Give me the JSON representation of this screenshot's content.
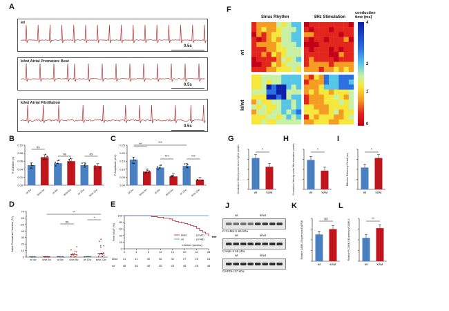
{
  "colors": {
    "wt": "#4a7fc1",
    "kiwt": "#c0151c",
    "ecg": "#b03030"
  },
  "panelA": {
    "label": "A",
    "traces": [
      {
        "title": "wt",
        "scale": "0.5s"
      },
      {
        "title": "ki/wt Atrial Premature Beat",
        "scale": "0.5s"
      },
      {
        "title": "ki/wt Atrial Fibrillation",
        "scale": "0.5s"
      }
    ]
  },
  "panelB": {
    "label": "B",
    "chart_data": {
      "type": "bar",
      "ylabel": "P Duration (s)",
      "categories": [
        "wt 4w",
        "ki/wt 4w",
        "wt 8w",
        "ki/wt 8w",
        "wt 12w",
        "ki/wt 12w"
      ],
      "values": [
        0.05,
        0.07,
        0.055,
        0.06,
        0.05,
        0.048
      ],
      "yticks": [
        "0.00",
        "0.02",
        "0.04",
        "0.06",
        "0.08",
        "0.10"
      ],
      "ylim": [
        0,
        0.1
      ],
      "significance": [
        "ns",
        "ns",
        "ns"
      ]
    }
  },
  "panelC": {
    "label": "C",
    "chart_data": {
      "type": "bar",
      "ylabel": "P Amplitude (mV)",
      "categories": [
        "wt 4w",
        "ki/wt 4w",
        "wt 8w",
        "ki/wt 8w",
        "wt 12w",
        "ki/wt 12w"
      ],
      "values": [
        0.16,
        0.085,
        0.11,
        0.055,
        0.12,
        0.035
      ],
      "yticks": [
        "0.00",
        "0.05",
        "0.10",
        "0.15",
        "0.20",
        "0.25"
      ],
      "ylim": [
        0,
        0.25
      ],
      "significance": [
        "**",
        "***",
        "***",
        "***"
      ]
    }
  },
  "panelD": {
    "label": "D",
    "chart_data": {
      "type": "scatter",
      "ylabel": "Atrial Premature Number (%)",
      "categories": [
        "wt 4w",
        "ki/wt 4w",
        "wt 8w",
        "ki/wt 8w",
        "wt 12w",
        "ki/wt 12w"
      ],
      "yticks": [
        "0",
        "10",
        "20",
        "30",
        "40",
        "50",
        "60",
        "70"
      ],
      "ylim": [
        0,
        70
      ],
      "means": [
        0,
        0.5,
        0.3,
        4,
        0.5,
        6
      ],
      "significance": [
        "**",
        "ns",
        "*"
      ]
    }
  },
  "panelE": {
    "label": "E",
    "chart_data": {
      "type": "line",
      "ylabel": "Free of AF (%)",
      "xlabel": "Lifetime (weeks)",
      "xticks": [
        "0",
        "4",
        "8",
        "12",
        "16",
        "20",
        "24",
        "28"
      ],
      "yticks": [
        "0",
        "20",
        "40",
        "60",
        "80",
        "100"
      ],
      "ylim": [
        0,
        100
      ],
      "series": [
        {
          "name": "ki/wt",
          "n": "(n=41)",
          "x": [
            0,
            6,
            9,
            11,
            13,
            15,
            16,
            17,
            18,
            19,
            20,
            21,
            22,
            23,
            24,
            25,
            26,
            27,
            28
          ],
          "y": [
            100,
            100,
            97,
            95,
            92,
            90,
            85,
            82,
            80,
            78,
            76,
            74,
            70,
            68,
            62,
            55,
            50,
            45,
            38
          ]
        },
        {
          "name": "wt",
          "n": "(n=48)",
          "x": [
            0,
            28
          ],
          "y": [
            100,
            100
          ]
        }
      ],
      "risk_table": {
        "rows": [
          {
            "name": "ki/wt",
            "values": [
              "41",
              "41",
              "40",
              "36",
              "32",
              "27",
              "25",
              "16"
            ]
          },
          {
            "name": "wt",
            "values": [
              "48",
              "48",
              "48",
              "48",
              "48",
              "48",
              "48",
              "48"
            ]
          }
        ]
      },
      "significance": "***"
    }
  },
  "panelF": {
    "label": "F",
    "col_titles": [
      "Sinus Rhythm",
      "8Hz Stimulation"
    ],
    "row_titles": [
      "wt",
      "ki/wt"
    ],
    "colorbar_title": "conduction time (ms)",
    "colorbar_ticks": [
      "4",
      "2",
      "1",
      "0"
    ]
  },
  "panelG": {
    "label": "G",
    "chart_data": {
      "type": "bar",
      "ylabel": "Conduction Velocity under sinus rhythm (mm/s)",
      "categories": [
        "wt",
        "ki/wt"
      ],
      "values": [
        1.25,
        0.9
      ],
      "significance": "*"
    }
  },
  "panelH": {
    "label": "H",
    "chart_data": {
      "type": "bar",
      "ylabel": "Conduction Velocity under 8Hz stimulation (mm/s)",
      "categories": [
        "wt",
        "ki/wt"
      ],
      "values": [
        1.1,
        0.7
      ],
      "significance": "*"
    }
  },
  "panelI": {
    "label": "I",
    "chart_data": {
      "type": "bar",
      "ylabel": "Effective Refractory Period (ms)",
      "categories": [
        "wt",
        "ki/wt"
      ],
      "values": [
        30,
        43
      ],
      "significance": "*"
    }
  },
  "panelJ": {
    "label": "J",
    "blots": [
      {
        "groups": [
          "wt",
          "ki/wt"
        ],
        "band": "P-CAMK-II 55 kDa"
      },
      {
        "groups": [
          "wt",
          "ki/wt"
        ],
        "band": "CAMK-II 55 kDa"
      },
      {
        "groups": [
          "wt",
          "ki/wt"
        ],
        "band": "GAPDH 37 kDa"
      }
    ]
  },
  "panelK": {
    "label": "K",
    "chart_data": {
      "type": "bar",
      "ylabel": "Relative CAMK-II Expression/GAPDH",
      "categories": [
        "wt",
        "ki/wt"
      ],
      "values": [
        1.0,
        1.2
      ],
      "significance": "ns"
    }
  },
  "panelL": {
    "label": "L",
    "chart_data": {
      "type": "bar",
      "ylabel": "Relative P-CAMK-II Expression/CAMK-II",
      "categories": [
        "wt",
        "ki/wt"
      ],
      "values": [
        0.6,
        0.85
      ],
      "significance": "**"
    }
  }
}
